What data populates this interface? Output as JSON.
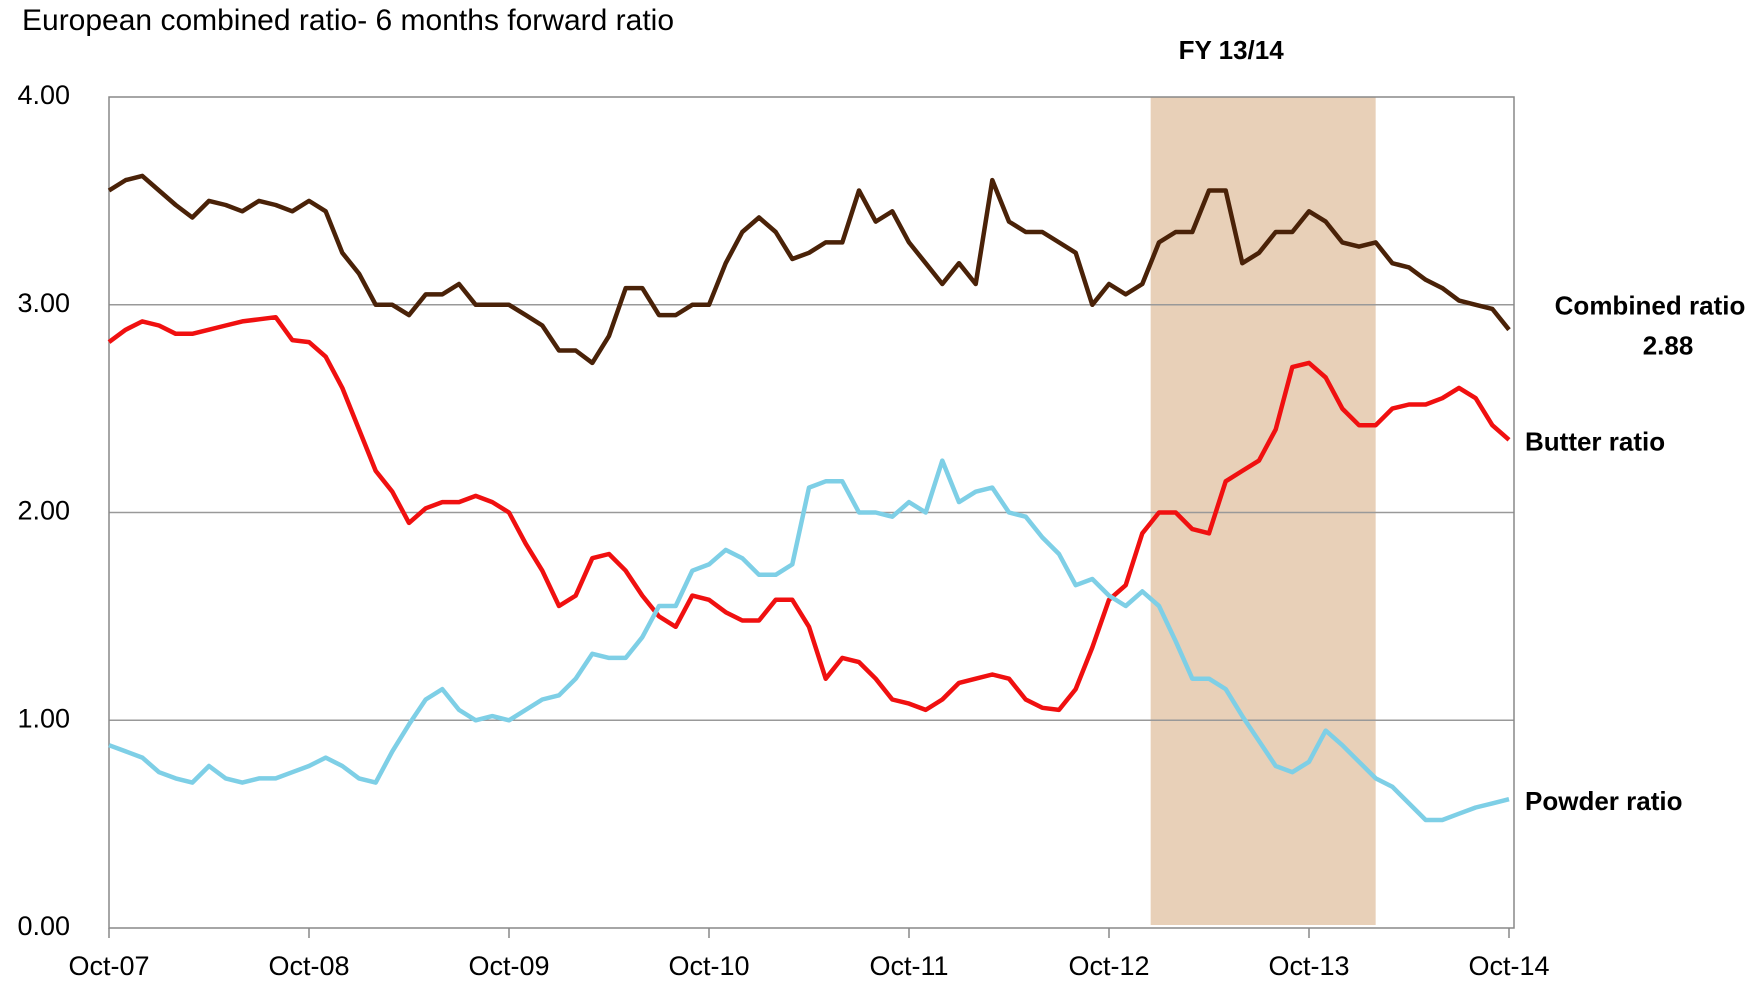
{
  "chart_data": {
    "type": "line",
    "title": "European combined ratio- 6 months forward ratio",
    "categories": [
      "Oct-07",
      null,
      null,
      null,
      null,
      null,
      null,
      null,
      null,
      null,
      null,
      null,
      "Oct-08",
      null,
      null,
      null,
      null,
      null,
      null,
      null,
      null,
      null,
      null,
      null,
      "Oct-09",
      null,
      null,
      null,
      null,
      null,
      null,
      null,
      null,
      null,
      null,
      null,
      "Oct-10",
      null,
      null,
      null,
      null,
      null,
      null,
      null,
      null,
      null,
      null,
      null,
      "Oct-11",
      null,
      null,
      null,
      null,
      null,
      null,
      null,
      null,
      null,
      null,
      null,
      "Oct-12",
      null,
      null,
      null,
      null,
      null,
      null,
      null,
      null,
      null,
      null,
      null,
      "Oct-13",
      null,
      null,
      null,
      null,
      null,
      null,
      null,
      null,
      null,
      null,
      null,
      "Oct-14"
    ],
    "series": [
      {
        "name": "Combined ratio",
        "color": "#4a2208",
        "values": [
          3.55,
          3.6,
          3.62,
          3.55,
          3.48,
          3.42,
          3.5,
          3.48,
          3.45,
          3.5,
          3.48,
          3.45,
          3.5,
          3.45,
          3.25,
          3.15,
          3.0,
          3.0,
          2.95,
          3.05,
          3.05,
          3.1,
          3.0,
          3.0,
          3.0,
          2.95,
          2.9,
          2.78,
          2.78,
          2.72,
          2.85,
          3.08,
          3.08,
          2.95,
          2.95,
          3.0,
          3.0,
          3.2,
          3.35,
          3.42,
          3.35,
          3.22,
          3.25,
          3.3,
          3.3,
          3.55,
          3.4,
          3.45,
          3.3,
          3.2,
          3.1,
          3.2,
          3.1,
          3.6,
          3.4,
          3.35,
          3.35,
          3.3,
          3.25,
          3.0,
          3.1,
          3.05,
          3.1,
          3.3,
          3.35,
          3.35,
          3.55,
          3.55,
          3.2,
          3.25,
          3.35,
          3.35,
          3.45,
          3.4,
          3.3,
          3.28,
          3.3,
          3.2,
          3.18,
          3.12,
          3.08,
          3.02,
          3.0,
          2.98,
          2.88
        ]
      },
      {
        "name": "Butter ratio",
        "color": "#f01010",
        "values": [
          2.82,
          2.88,
          2.92,
          2.9,
          2.86,
          2.86,
          2.88,
          2.9,
          2.92,
          2.93,
          2.94,
          2.83,
          2.82,
          2.75,
          2.6,
          2.4,
          2.2,
          2.1,
          1.95,
          2.02,
          2.05,
          2.05,
          2.08,
          2.05,
          2.0,
          1.85,
          1.72,
          1.55,
          1.6,
          1.78,
          1.8,
          1.72,
          1.6,
          1.5,
          1.45,
          1.6,
          1.58,
          1.52,
          1.48,
          1.48,
          1.58,
          1.58,
          1.45,
          1.2,
          1.3,
          1.28,
          1.2,
          1.1,
          1.08,
          1.05,
          1.1,
          1.18,
          1.2,
          1.22,
          1.2,
          1.1,
          1.06,
          1.05,
          1.15,
          1.35,
          1.58,
          1.65,
          1.9,
          2.0,
          2.0,
          1.92,
          1.9,
          2.15,
          2.2,
          2.25,
          2.4,
          2.7,
          2.72,
          2.65,
          2.5,
          2.42,
          2.42,
          2.5,
          2.52,
          2.52,
          2.55,
          2.6,
          2.55,
          2.42,
          2.35
        ]
      },
      {
        "name": "Powder ratio",
        "color": "#7ecfe6",
        "values": [
          0.88,
          0.85,
          0.82,
          0.75,
          0.72,
          0.7,
          0.78,
          0.72,
          0.7,
          0.72,
          0.72,
          0.75,
          0.78,
          0.82,
          0.78,
          0.72,
          0.7,
          0.85,
          0.98,
          1.1,
          1.15,
          1.05,
          1.0,
          1.02,
          1.0,
          1.05,
          1.1,
          1.12,
          1.2,
          1.32,
          1.3,
          1.3,
          1.4,
          1.55,
          1.55,
          1.72,
          1.75,
          1.82,
          1.78,
          1.7,
          1.7,
          1.75,
          2.12,
          2.15,
          2.15,
          2.0,
          2.0,
          1.98,
          2.05,
          2.0,
          2.25,
          2.05,
          2.1,
          2.12,
          2.0,
          1.98,
          1.88,
          1.8,
          1.65,
          1.68,
          1.6,
          1.55,
          1.62,
          1.55,
          1.38,
          1.2,
          1.2,
          1.15,
          1.02,
          0.9,
          0.78,
          0.75,
          0.8,
          0.95,
          0.88,
          0.8,
          0.72,
          0.68,
          0.6,
          0.52,
          0.52,
          0.55,
          0.58,
          0.6,
          0.62
        ]
      }
    ],
    "shade": {
      "label": "FY 13/14",
      "start": 62.5,
      "end": 76,
      "color": "#e8d0b8"
    },
    "ylim": [
      0,
      4
    ],
    "yticks": [
      {
        "value": 0,
        "label": "0.00"
      },
      {
        "value": 1,
        "label": "1.00"
      },
      {
        "value": 2,
        "label": "2.00"
      },
      {
        "value": 3,
        "label": "3.00"
      },
      {
        "value": 4,
        "label": "4.00"
      }
    ],
    "grid": true
  }
}
